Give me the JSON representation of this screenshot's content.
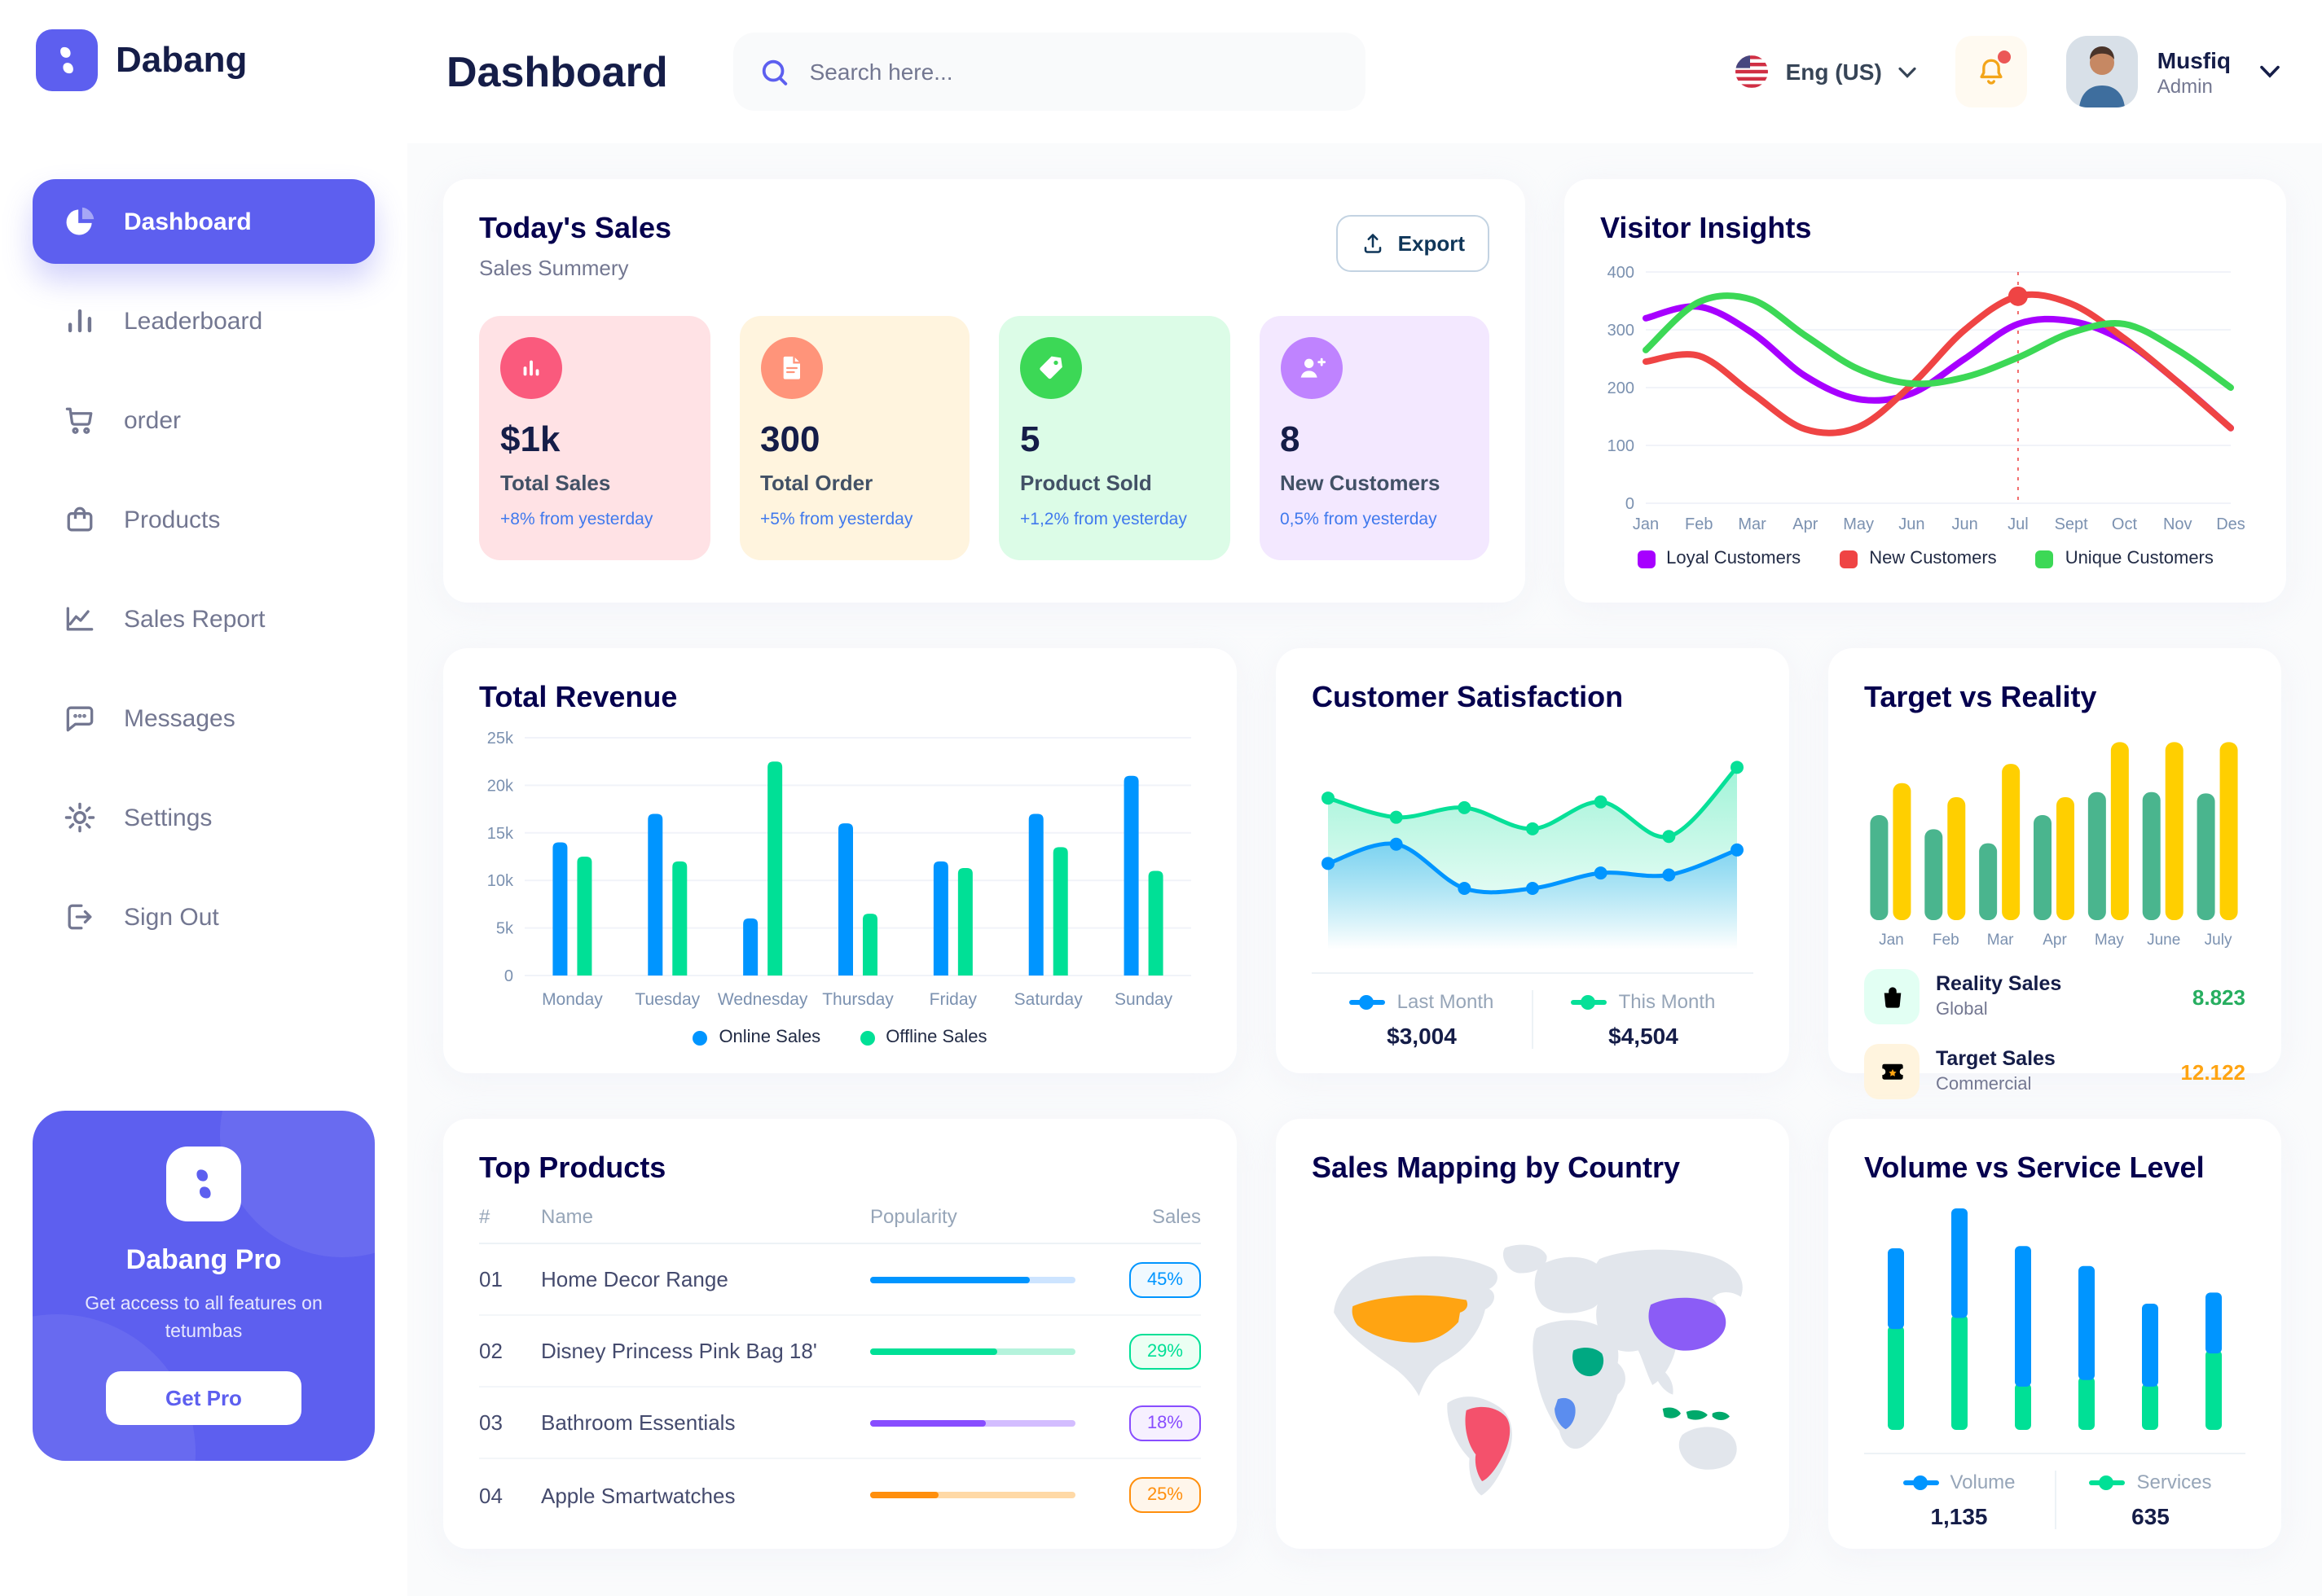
{
  "sidebar": {
    "brand": "Dabang",
    "items": [
      {
        "label": "Dashboard",
        "icon": "pie",
        "active": true
      },
      {
        "label": "Leaderboard",
        "icon": "bars",
        "active": false
      },
      {
        "label": "order",
        "icon": "cart",
        "active": false
      },
      {
        "label": "Products",
        "icon": "bag",
        "active": false
      },
      {
        "label": "Sales Report",
        "icon": "chart",
        "active": false
      },
      {
        "label": "Messages",
        "icon": "chat",
        "active": false
      },
      {
        "label": "Settings",
        "icon": "gear",
        "active": false
      },
      {
        "label": "Sign Out",
        "icon": "logout",
        "active": false
      }
    ],
    "pro": {
      "title": "Dabang Pro",
      "description": "Get access to all features on tetumbas",
      "button": "Get Pro"
    }
  },
  "header": {
    "title": "Dashboard",
    "search_placeholder": "Search here...",
    "language": "Eng (US)",
    "user": {
      "name": "Musfiq",
      "role": "Admin"
    }
  },
  "today_sales": {
    "title": "Today's Sales",
    "subtitle": "Sales Summery",
    "export_label": "Export",
    "cards": [
      {
        "value": "$1k",
        "label": "Total Sales",
        "delta": "+8% from yesterday",
        "bg": "#FFE2E5",
        "icon_bg": "#FA5A7D",
        "icon": "stat-bars"
      },
      {
        "value": "300",
        "label": "Total Order",
        "delta": "+5% from yesterday",
        "bg": "#FFF4DE",
        "icon_bg": "#FF947A",
        "icon": "file"
      },
      {
        "value": "5",
        "label": "Product Sold",
        "delta": "+1,2% from yesterday",
        "bg": "#DCFCE7",
        "icon_bg": "#3CD856",
        "icon": "tag"
      },
      {
        "value": "8",
        "label": "New Customers",
        "delta": "0,5% from yesterday",
        "bg": "#F3E8FF",
        "icon_bg": "#BF83FF",
        "icon": "user-plus"
      }
    ]
  },
  "chart_data": [
    {
      "id": "visitor_insights",
      "type": "line",
      "title": "Visitor Insights",
      "x_labels": [
        "Jan",
        "Feb",
        "Mar",
        "Apr",
        "May",
        "Jun",
        "Jun",
        "Jul",
        "Sept",
        "Oct",
        "Nov",
        "Des"
      ],
      "ylim": [
        0,
        400
      ],
      "yticks": [
        0,
        100,
        200,
        300,
        400
      ],
      "grid": true,
      "legend_position": "bottom",
      "series": [
        {
          "name": "Loyal Customers",
          "color": "#A700FF",
          "values": [
            320,
            340,
            295,
            220,
            180,
            190,
            250,
            310,
            315,
            280,
            210,
            130
          ]
        },
        {
          "name": "New Customers",
          "color": "#EF4444",
          "values": [
            245,
            255,
            190,
            128,
            132,
            205,
            300,
            358,
            345,
            285,
            210,
            130
          ]
        },
        {
          "name": "Unique Customers",
          "color": "#3CD856",
          "values": [
            265,
            348,
            352,
            290,
            232,
            207,
            218,
            252,
            295,
            310,
            265,
            200
          ]
        }
      ],
      "annotation": {
        "x_index": 7,
        "series_index": 1,
        "line_color": "#EF4444"
      }
    },
    {
      "id": "total_revenue",
      "type": "bar",
      "title": "Total Revenue",
      "categories": [
        "Monday",
        "Tuesday",
        "Wednesday",
        "Thursday",
        "Friday",
        "Saturday",
        "Sunday"
      ],
      "ylim": [
        0,
        25000
      ],
      "ytick_labels": [
        "0",
        "5k",
        "10k",
        "15k",
        "20k",
        "25k"
      ],
      "grid": true,
      "legend_position": "bottom",
      "series": [
        {
          "name": "Online Sales",
          "color": "#0095FF",
          "values": [
            14000,
            17000,
            6000,
            16000,
            12000,
            17000,
            21000
          ]
        },
        {
          "name": "Offline Sales",
          "color": "#00E096",
          "values": [
            12500,
            12000,
            22500,
            6500,
            11300,
            13500,
            11000
          ]
        }
      ]
    },
    {
      "id": "customer_satisfaction",
      "type": "area",
      "title": "Customer Satisfaction",
      "ylim": [
        0,
        100
      ],
      "grid": false,
      "legend_position": "bottom",
      "series": [
        {
          "name": "This Month",
          "color": "#07E098",
          "total": "$4,504",
          "values": [
            72,
            62,
            67,
            56,
            70,
            52,
            88
          ]
        },
        {
          "name": "Last Month",
          "color": "#0095FF",
          "total": "$3,004",
          "values": [
            38,
            48,
            25,
            25,
            33,
            32,
            45
          ]
        }
      ],
      "legend_order": [
        "Last Month",
        "This Month"
      ]
    },
    {
      "id": "target_reality",
      "type": "bar",
      "title": "Target vs Reality",
      "categories": [
        "Jan",
        "Feb",
        "Mar",
        "Apr",
        "May",
        "June",
        "July"
      ],
      "ylim": [
        0,
        14.5
      ],
      "grid": false,
      "series": [
        {
          "name": "Reality Sales",
          "color": "#4AB58E",
          "values": [
            8.2,
            7.1,
            6.0,
            8.2,
            10,
            10,
            9.9
          ]
        },
        {
          "name": "Target Sales",
          "color": "#FFCF00",
          "values": [
            10.7,
            9.6,
            12.2,
            9.6,
            13.9,
            13.9,
            13.9
          ]
        }
      ],
      "legend": [
        {
          "label": "Reality Sales",
          "sub": "Global",
          "value": "8.823",
          "value_color": "#27AE60",
          "icon": "shop-bag",
          "icon_bg": "#E2FFF3"
        },
        {
          "label": "Target Sales",
          "sub": "Commercial",
          "value": "12.122",
          "value_color": "#FFA412",
          "icon": "ticket",
          "icon_bg": "#FFF4DE"
        }
      ]
    },
    {
      "id": "volume_service",
      "type": "stacked_bar",
      "title": "Volume vs Service Level",
      "ylim": [
        0,
        100
      ],
      "grid": false,
      "legend_position": "bottom",
      "series": [
        {
          "name": "Volume",
          "color": "#0095FF",
          "total": "1,135",
          "values": [
            35,
            48,
            62,
            50,
            36,
            26
          ]
        },
        {
          "name": "Services",
          "color": "#00E096",
          "total": "635",
          "values": [
            47,
            52,
            21,
            24,
            21,
            36
          ]
        }
      ]
    }
  ],
  "top_products": {
    "title": "Top Products",
    "headers": [
      "#",
      "Name",
      "Popularity",
      "Sales"
    ],
    "rows": [
      {
        "num": "01",
        "name": "Home Decor Range",
        "popularity_pct": 78,
        "sales": "45%",
        "color": "#0095FF",
        "track": "#CDE4FF",
        "badge_bg": "#F0F9FF"
      },
      {
        "num": "02",
        "name": "Disney Princess Pink Bag 18'",
        "popularity_pct": 62,
        "sales": "29%",
        "color": "#00E096",
        "track": "#B5F3DC",
        "badge_bg": "#EBFFF3"
      },
      {
        "num": "03",
        "name": "Bathroom Essentials",
        "popularity_pct": 56,
        "sales": "18%",
        "color": "#884DFF",
        "track": "#D3BDFF",
        "badge_bg": "#F6F0FF"
      },
      {
        "num": "04",
        "name": "Apple Smartwatches",
        "popularity_pct": 33,
        "sales": "25%",
        "color": "#FF8F0D",
        "track": "#FFD9A6",
        "badge_bg": "#FFF6EB"
      }
    ]
  },
  "sales_map": {
    "title": "Sales Mapping by Country",
    "countries": {
      "usa": "#FFA412",
      "brazil": "#F4516C",
      "saudi_arabia": "#00A982",
      "dr_congo": "#5B8DEF",
      "china": "#8B5CF6",
      "indonesia": "#00A96B"
    }
  }
}
